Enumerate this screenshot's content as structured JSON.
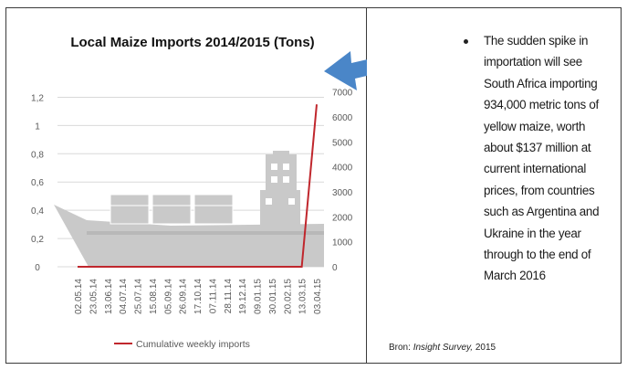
{
  "chart_data": {
    "type": "line",
    "title": "Local Maize Imports 2014/2015 (Tons)",
    "x": [
      "02.05.14",
      "23.05.14",
      "13.06.14",
      "04.07.14",
      "25.07.14",
      "15.08.14",
      "05.09.14",
      "26.09.14",
      "17.10.14",
      "07.11.14",
      "28.11.14",
      "19.12.14",
      "09.01.15",
      "30.01.15",
      "20.02.15",
      "13.03.15",
      "03.04.15"
    ],
    "left_axis": {
      "ticks": [
        "0",
        "0,2",
        "0,4",
        "0,6",
        "0,8",
        "1",
        "1,2"
      ],
      "ylim": [
        0,
        1.3
      ]
    },
    "right_axis": {
      "ticks": [
        "0",
        "1000",
        "2000",
        "3000",
        "4000",
        "5000",
        "6000",
        "7000"
      ],
      "ylim": [
        0,
        7350
      ]
    },
    "series": [
      {
        "name": "Cumulative weekly imports",
        "color": "#c0272d",
        "axis": "right",
        "values": [
          0,
          0,
          0,
          0,
          0,
          0,
          0,
          0,
          0,
          0,
          0,
          0,
          0,
          0,
          0,
          0,
          6500
        ]
      }
    ],
    "grid": true,
    "legend": "bottom"
  },
  "panel": {
    "bullet_lines": [
      "The sudden spike in",
      "importation will see",
      "South Africa importing",
      "934,000 metric tons of",
      "yellow maize, worth",
      "about $137 million at",
      "current international",
      "prices, from countries",
      "such as Argentina and",
      "Ukraine in the year",
      "through to the end of",
      "March 2016"
    ],
    "source_prefix": "Bron: ",
    "source_name": "Insight Survey,",
    "source_year": " 2015"
  },
  "colors": {
    "ship": "#c9c9c9",
    "arrow": "#4a86c8",
    "grid": "#d9d9d9",
    "axis_text": "#595959"
  },
  "icons": {
    "background": "cargo-ship-icon",
    "pointer": "arrow-left-icon"
  }
}
